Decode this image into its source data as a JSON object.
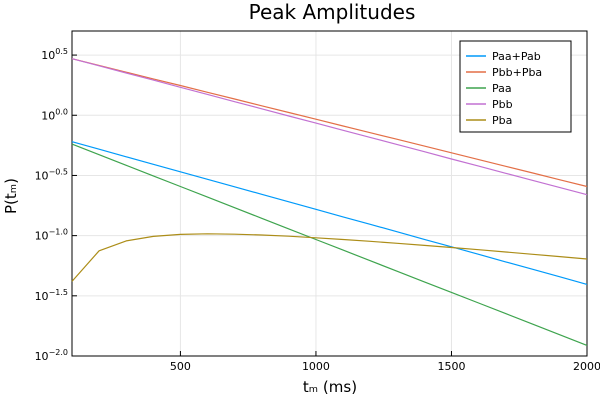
{
  "chart_data": {
    "type": "line",
    "title": "Peak Amplitudes",
    "xlabel": "tₘ (ms)",
    "ylabel": "P(tₘ)",
    "xlim": [
      100,
      2000
    ],
    "ylim_log10": [
      -2.0,
      0.7
    ],
    "yscale": "log10",
    "grid": true,
    "legend_position": "top-right",
    "x_ticks": [
      500,
      1000,
      1500,
      2000
    ],
    "x_tick_labels": [
      "500",
      "1000",
      "1500",
      "2000"
    ],
    "y_tick_exponents": [
      0.5,
      0.0,
      -0.5,
      -1.0,
      -1.5,
      -2.0
    ],
    "y_tick_labels": [
      {
        "base": "10",
        "exp": "0.5"
      },
      {
        "base": "10",
        "exp": "0.0"
      },
      {
        "base": "10",
        "exp": "−0.5"
      },
      {
        "base": "10",
        "exp": "−1.0"
      },
      {
        "base": "10",
        "exp": "−1.5"
      },
      {
        "base": "10",
        "exp": "−2.0"
      }
    ],
    "x": [
      100,
      200,
      300,
      400,
      500,
      600,
      700,
      800,
      900,
      1000,
      1100,
      1200,
      1300,
      1400,
      1500,
      1600,
      1700,
      1800,
      1900,
      2000
    ],
    "series": [
      {
        "name": "Paa+Pab",
        "color": "#009AFA",
        "log10_values": [
          -0.22,
          -0.282,
          -0.345,
          -0.407,
          -0.47,
          -0.532,
          -0.594,
          -0.657,
          -0.719,
          -0.781,
          -0.844,
          -0.906,
          -0.968,
          -1.031,
          -1.093,
          -1.155,
          -1.218,
          -1.28,
          -1.342,
          -1.405
        ]
      },
      {
        "name": "Pbb+Pba",
        "color": "#E36F47",
        "log10_values": [
          0.47,
          0.414,
          0.358,
          0.302,
          0.247,
          0.191,
          0.135,
          0.079,
          0.023,
          -0.033,
          -0.089,
          -0.145,
          -0.2,
          -0.256,
          -0.312,
          -0.368,
          -0.424,
          -0.48,
          -0.536,
          -0.592
        ]
      },
      {
        "name": "Paa",
        "color": "#3EA44E",
        "log10_values": [
          -0.24,
          -0.328,
          -0.416,
          -0.504,
          -0.592,
          -0.68,
          -0.768,
          -0.856,
          -0.944,
          -1.032,
          -1.12,
          -1.208,
          -1.296,
          -1.384,
          -1.472,
          -1.56,
          -1.648,
          -1.736,
          -1.824,
          -1.912
        ]
      },
      {
        "name": "Pbb",
        "color": "#C271D2",
        "log10_values": [
          0.47,
          0.411,
          0.351,
          0.292,
          0.232,
          0.173,
          0.113,
          0.054,
          -0.006,
          -0.065,
          -0.125,
          -0.184,
          -0.244,
          -0.303,
          -0.363,
          -0.422,
          -0.482,
          -0.541,
          -0.601,
          -0.66
        ]
      },
      {
        "name": "Pba",
        "color": "#AC8D18",
        "log10_values": [
          -1.38,
          -1.126,
          -1.044,
          -1.006,
          -0.99,
          -0.985,
          -0.988,
          -0.995,
          -1.005,
          -1.018,
          -1.032,
          -1.047,
          -1.064,
          -1.081,
          -1.099,
          -1.117,
          -1.136,
          -1.155,
          -1.174,
          -1.194
        ]
      }
    ]
  }
}
